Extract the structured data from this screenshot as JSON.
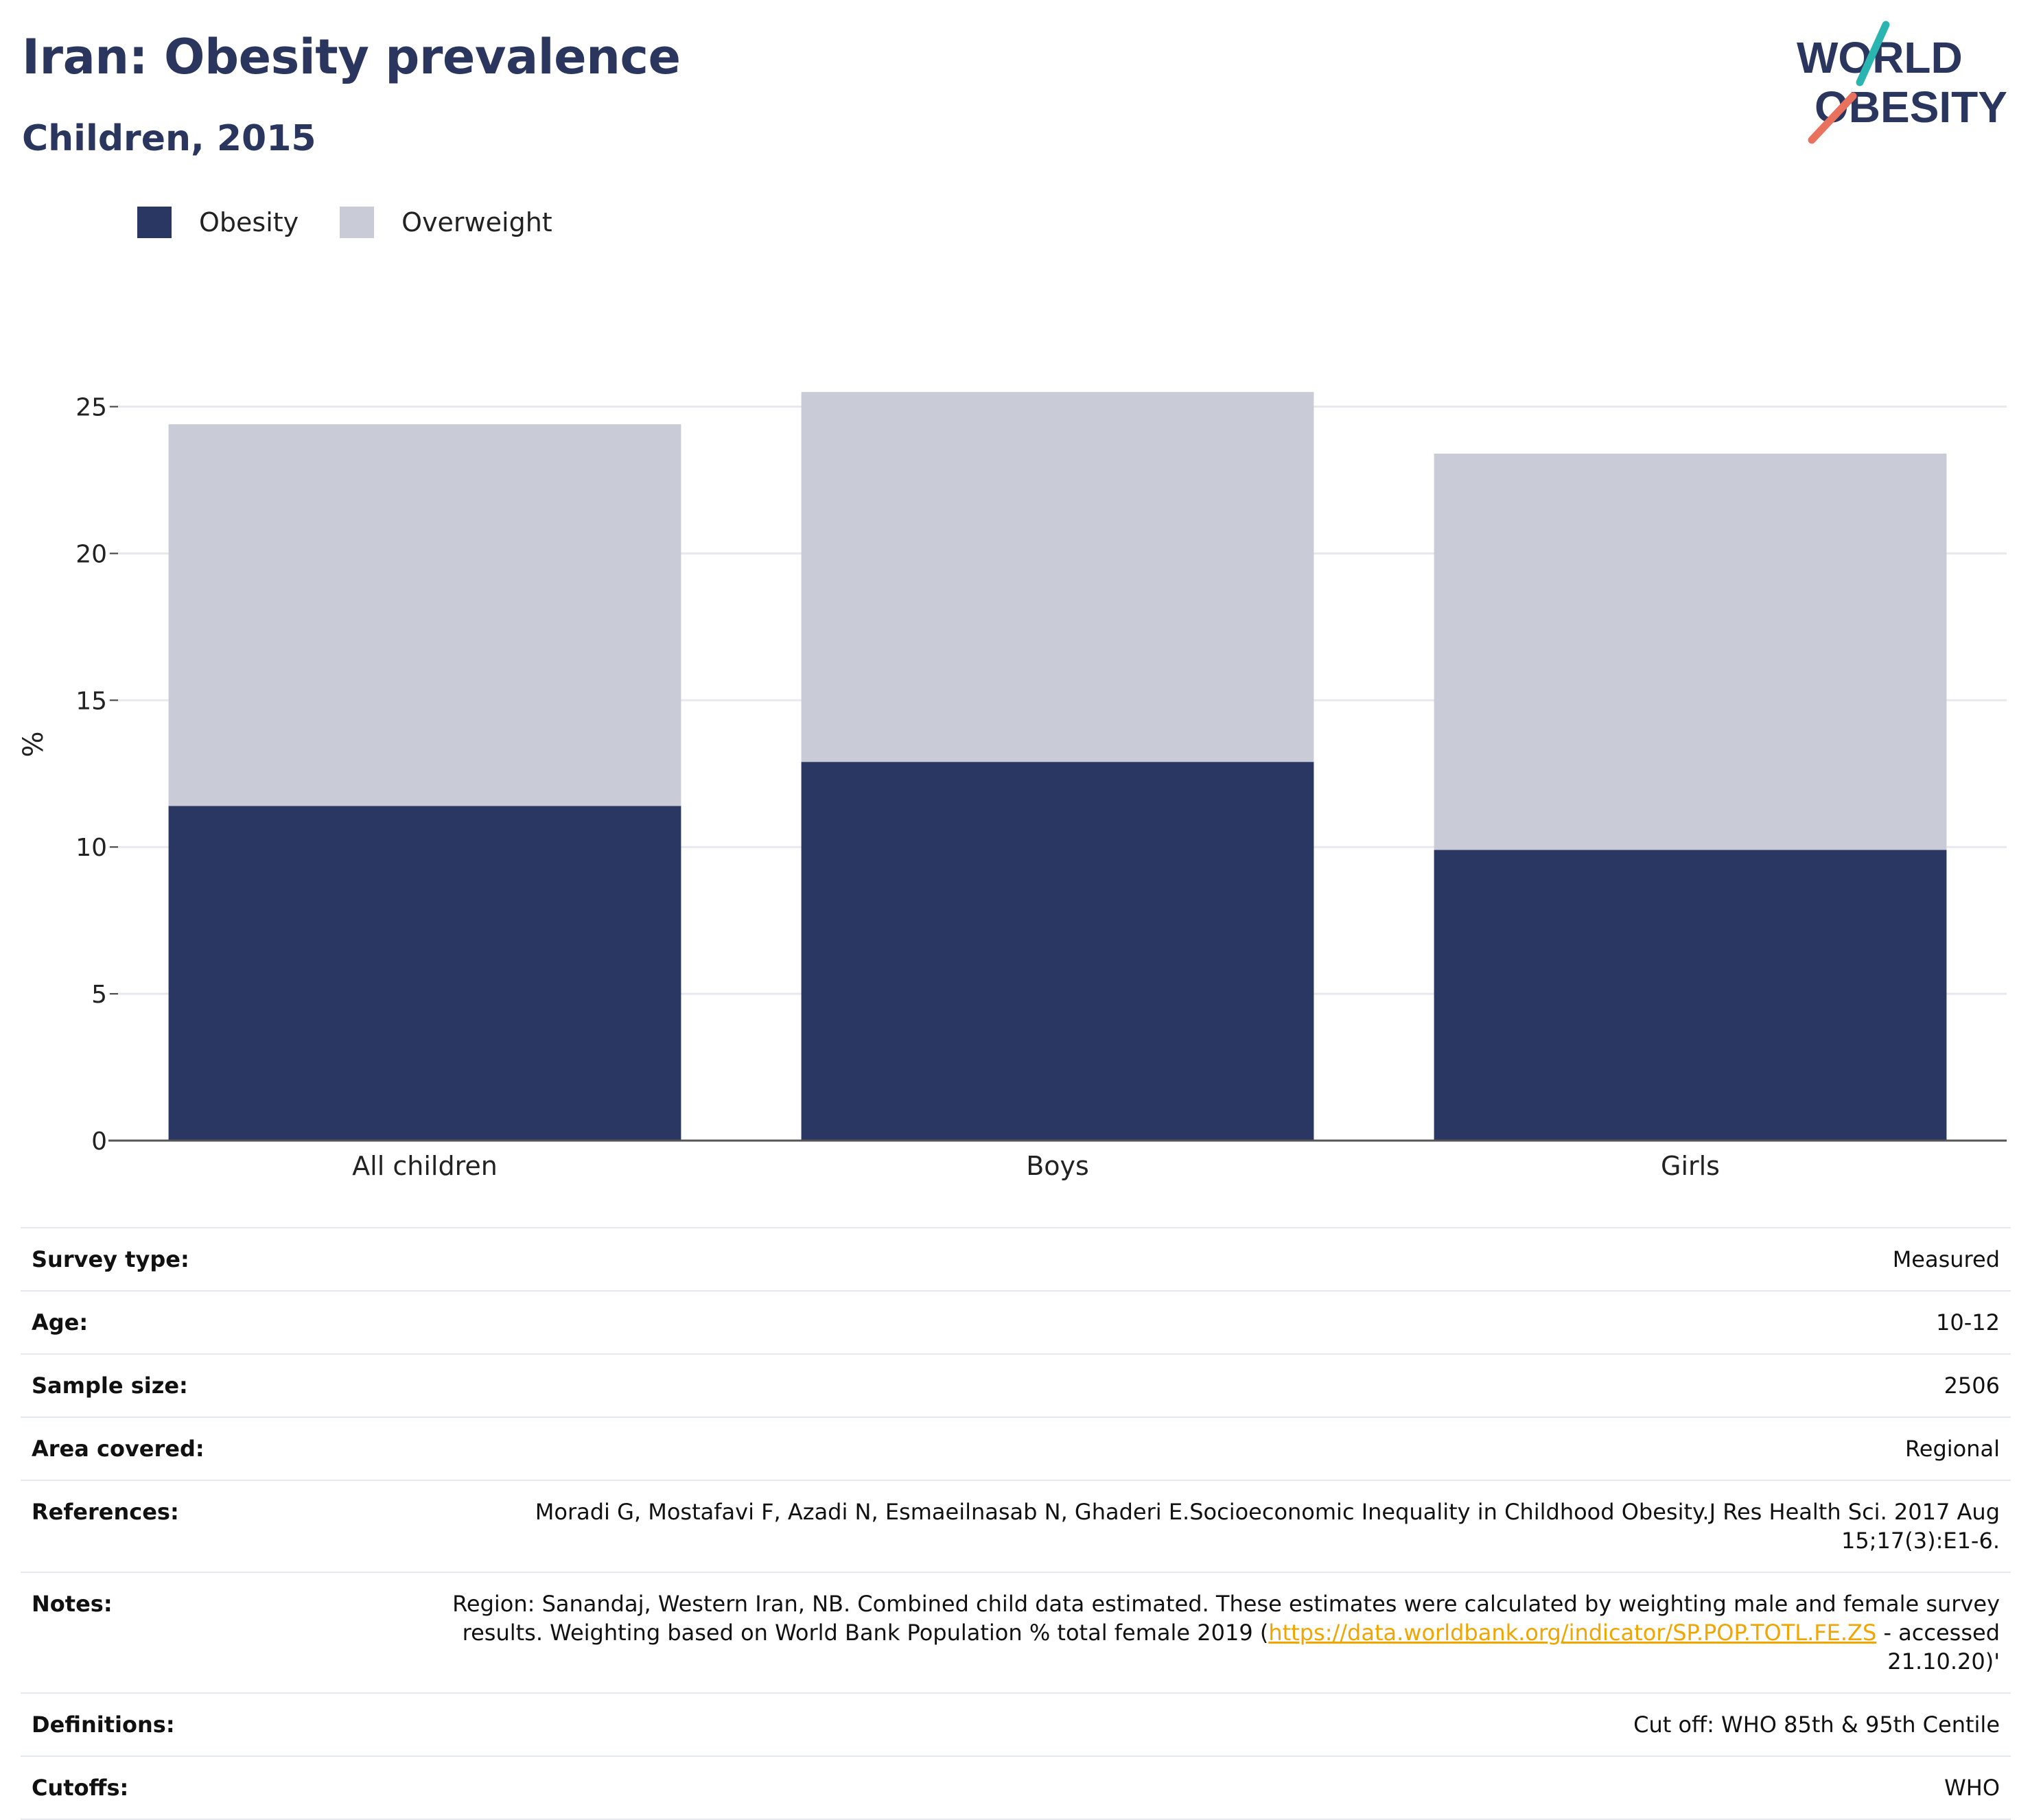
{
  "header": {
    "title": "Iran: Obesity prevalence",
    "subtitle": "Children, 2015",
    "logo_line1": "WORLD",
    "logo_line2": "OBESITY"
  },
  "colors": {
    "obesity": "#2b3763",
    "overweight": "#c9cbd7",
    "title": "#2b365f",
    "link": "#f0a500",
    "logo_teal": "#2bb5b0",
    "logo_coral": "#e8725e"
  },
  "legend": [
    {
      "label": "Obesity",
      "color": "#2b3763"
    },
    {
      "label": "Overweight",
      "color": "#c9cbd7"
    }
  ],
  "chart_data": {
    "type": "bar",
    "stacked": true,
    "categories": [
      "All children",
      "Boys",
      "Girls"
    ],
    "series": [
      {
        "name": "Obesity",
        "values": [
          11.4,
          12.9,
          9.9
        ],
        "color": "#2b3763"
      },
      {
        "name": "Overweight",
        "values": [
          13.0,
          12.6,
          13.5
        ],
        "color": "#c9cbd7"
      }
    ],
    "ylabel": "%",
    "ylim": [
      0,
      27
    ],
    "yticks": [
      0,
      5,
      10,
      15,
      20,
      25
    ],
    "grid": true,
    "legend_position": "top-left"
  },
  "info": [
    {
      "key": "Survey type:",
      "value": "Measured"
    },
    {
      "key": "Age:",
      "value": "10-12"
    },
    {
      "key": "Sample size:",
      "value": "2506"
    },
    {
      "key": "Area covered:",
      "value": "Regional"
    },
    {
      "key": "References:",
      "value": "Moradi G, Mostafavi F, Azadi N, Esmaeilnasab N, Ghaderi E.Socioeconomic Inequality in Childhood Obesity.J Res Health Sci. 2017 Aug 15;17(3):E1-6."
    },
    {
      "key": "Notes:",
      "value": "Region: Sanandaj, Western Iran, NB. Combined child data estimated. These estimates were calculated by weighting male and female survey results. Weighting based on World Bank Population % total female 2019 (",
      "link": "https://data.worldbank.org/indicator/SP.POP.TOTL.FE.ZS",
      "value_after": " - accessed 21.10.20)'"
    },
    {
      "key": "Definitions:",
      "value": "Cut off: WHO 85th & 95th Centile"
    },
    {
      "key": "Cutoffs:",
      "value": "WHO"
    }
  ]
}
